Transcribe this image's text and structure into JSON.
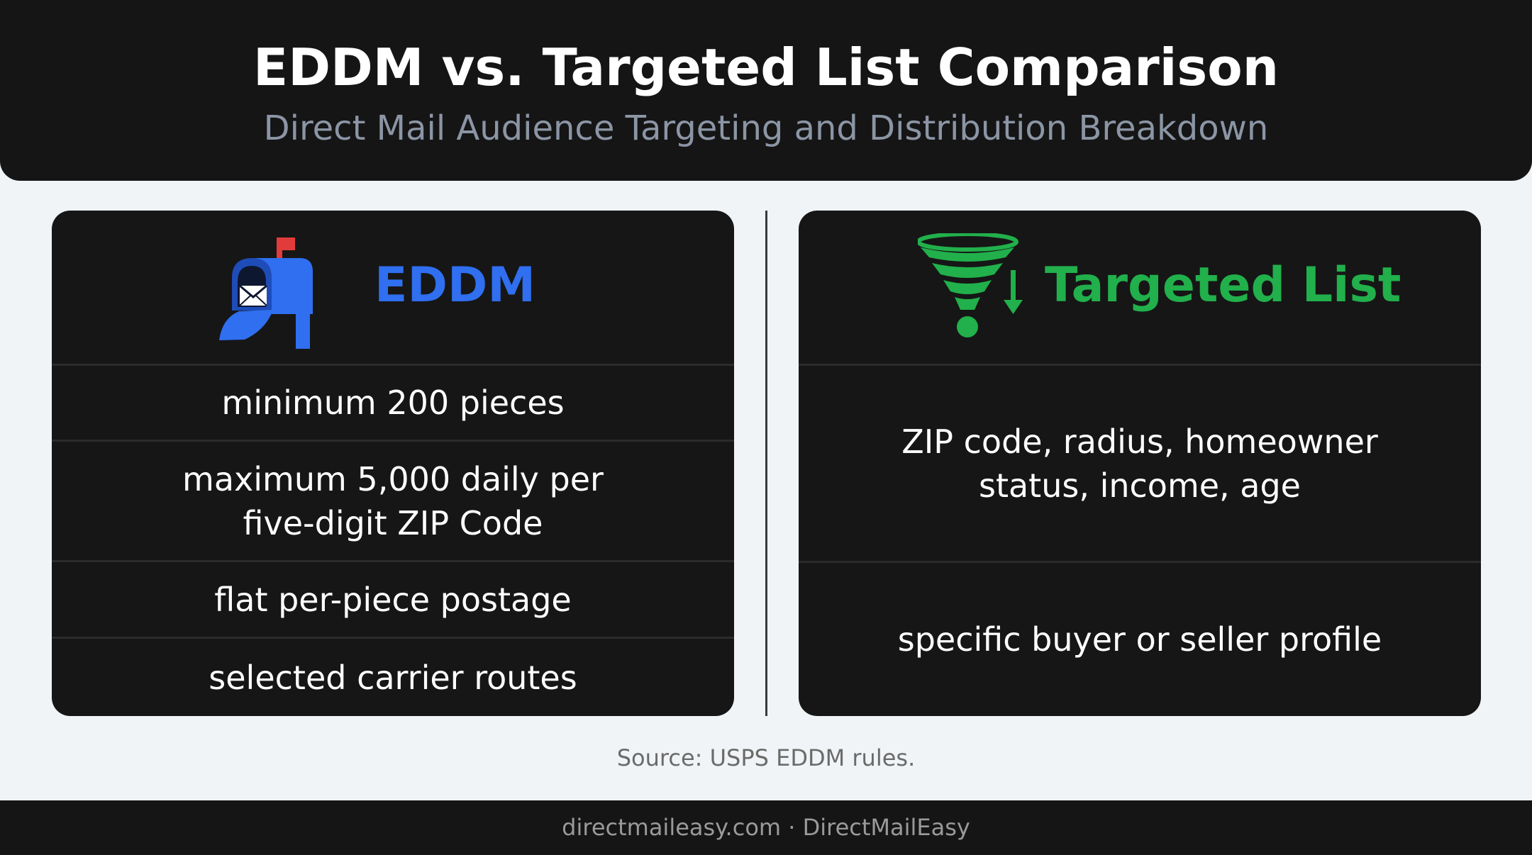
{
  "header": {
    "title": "EDDM vs. Targeted List Comparison",
    "subtitle": "Direct Mail Audience Targeting and Distribution Breakdown"
  },
  "colors": {
    "eddm_accent": "#2f6ff0",
    "targeted_accent": "#21b04b",
    "mailbox_flag": "#e23b3b",
    "panel_background": "#161616",
    "page_background": "#f1f4f6"
  },
  "eddm": {
    "label": "EDDM",
    "icon": "mailbox-icon",
    "rows": [
      "minimum 200 pieces",
      "maximum 5,000 daily per five-digit ZIP Code",
      "flat per-piece postage",
      "selected carrier routes"
    ]
  },
  "targeted": {
    "label": "Targeted List",
    "icon": "funnel-icon",
    "rows": [
      "ZIP code, radius, homeowner status, income, age",
      "specific buyer or seller profile"
    ]
  },
  "source": "Source: USPS EDDM rules.",
  "footer": "directmaileasy.com · DirectMailEasy"
}
